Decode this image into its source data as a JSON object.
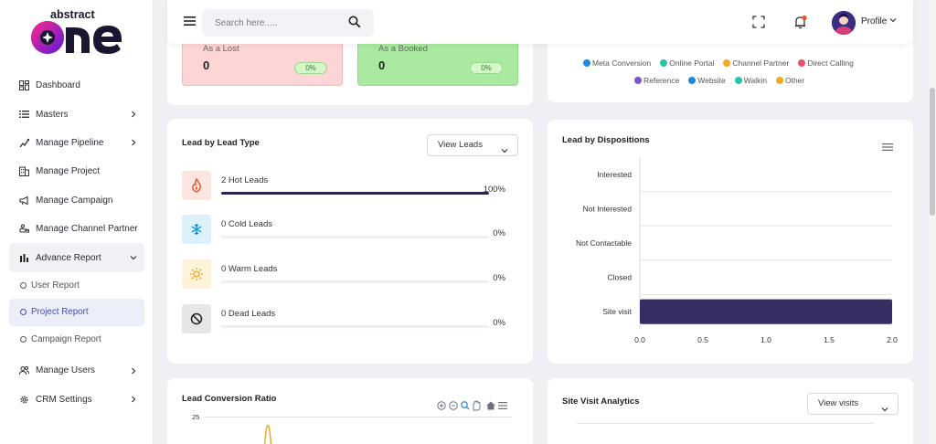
{
  "app": {
    "logo_top": "abstract",
    "logo_main": "one"
  },
  "sidebar": {
    "items": [
      {
        "label": "Dashboard",
        "icon": "dashboard-icon",
        "chevron": false
      },
      {
        "label": "Masters",
        "icon": "list-icon",
        "chevron": true
      },
      {
        "label": "Manage Pipeline",
        "icon": "pipeline-icon",
        "chevron": true
      },
      {
        "label": "Manage Project",
        "icon": "building-icon",
        "chevron": false
      },
      {
        "label": "Manage Campaign",
        "icon": "megaphone-icon",
        "chevron": false
      },
      {
        "label": "Manage Channel Partner",
        "icon": "handshake-icon",
        "chevron": false
      },
      {
        "label": "Advance Report",
        "icon": "bar-chart-icon",
        "chevron": true,
        "open": true
      }
    ],
    "sub_items": [
      {
        "label": "User Report",
        "active": false
      },
      {
        "label": "Project Report",
        "active": true
      },
      {
        "label": "Campaign Report",
        "active": false
      }
    ],
    "bottom_items": [
      {
        "label": "Manage Users",
        "icon": "users-icon"
      },
      {
        "label": "CRM Settings",
        "icon": "gear-icon"
      }
    ]
  },
  "topbar": {
    "search_placeholder": "Search here.....",
    "profile_label": "Profile"
  },
  "stats": {
    "lost": {
      "label": "As a Lost",
      "value": "0",
      "percent": "0%"
    },
    "booked": {
      "label": "As a Booked",
      "value": "0",
      "percent": "0%"
    }
  },
  "source_legend": {
    "row1": [
      {
        "label": "Meta Conversion",
        "color": "#1e88e5"
      },
      {
        "label": "Online Portal",
        "color": "#26c6a6"
      },
      {
        "label": "Channel Partner",
        "color": "#f6a821"
      },
      {
        "label": "Direct Calling",
        "color": "#ef4f6a"
      }
    ],
    "row2": [
      {
        "label": "Reference",
        "color": "#7e57c2"
      },
      {
        "label": "Website",
        "color": "#1e88e5"
      },
      {
        "label": "Walkin",
        "color": "#26c6a6"
      },
      {
        "label": "Other",
        "color": "#f6a821"
      }
    ]
  },
  "lead_type": {
    "title": "Lead by Lead Type",
    "dropdown": "View Leads",
    "rows": [
      {
        "label": "2 Hot Leads",
        "percent": "100%",
        "fill": 1.0,
        "icon": "fire-icon",
        "bg": "#fde6df",
        "color": "#e8502e"
      },
      {
        "label": "0 Cold Leads",
        "percent": "0%",
        "fill": 0,
        "icon": "snowflake-icon",
        "bg": "#ddf1fb",
        "color": "#1e9be0"
      },
      {
        "label": "0 Warm Leads",
        "percent": "0%",
        "fill": 0,
        "icon": "sun-icon",
        "bg": "#fdf3da",
        "color": "#f2a51a"
      },
      {
        "label": "0 Dead Leads",
        "percent": "0%",
        "fill": 0,
        "icon": "block-icon",
        "bg": "#e6e6e6",
        "color": "#222222"
      }
    ]
  },
  "dispositions": {
    "title": "Lead by Dispositions",
    "chart_data": {
      "type": "bar",
      "orientation": "horizontal",
      "categories": [
        "Interested",
        "Not Interested",
        "Not Contactable",
        "Closed",
        "Site visit"
      ],
      "values": [
        0,
        0,
        0,
        0,
        2
      ],
      "xlim": [
        0,
        2
      ],
      "xticks": [
        "0.0",
        "0.5",
        "1.0",
        "1.5",
        "2.0"
      ],
      "bar_color": "#362e63"
    }
  },
  "conversion": {
    "title": "Lead Conversion Ratio",
    "y_tick_top": "25"
  },
  "site_visit": {
    "title": "Site Visit Analytics",
    "dropdown": "View visits"
  }
}
